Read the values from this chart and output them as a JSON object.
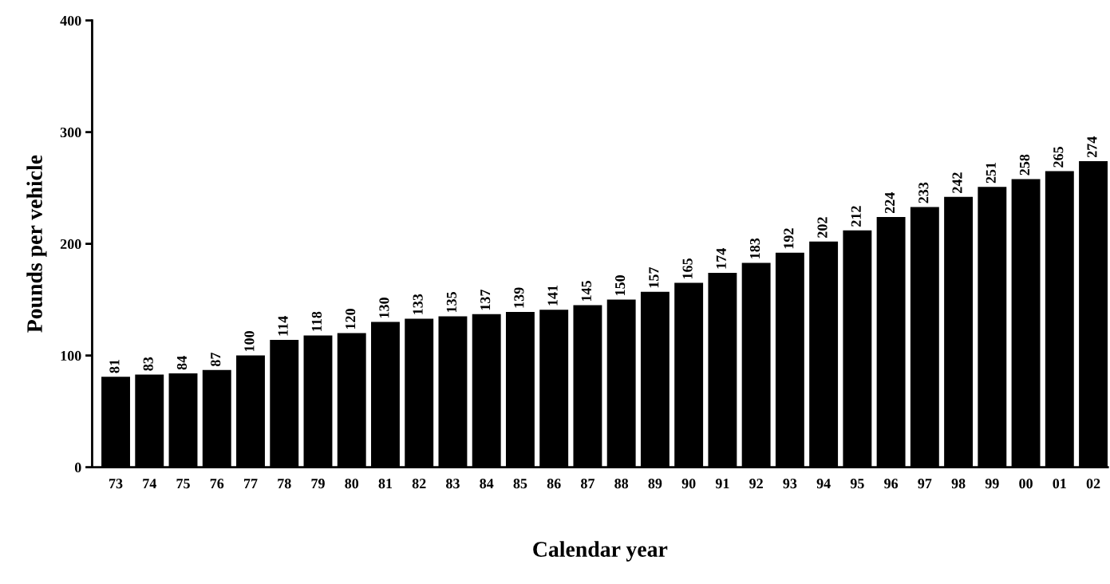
{
  "chart_data": {
    "type": "bar",
    "xlabel": "Calendar year",
    "ylabel": "Pounds per vehicle",
    "categories": [
      "73",
      "74",
      "75",
      "76",
      "77",
      "78",
      "79",
      "80",
      "81",
      "82",
      "83",
      "84",
      "85",
      "86",
      "87",
      "88",
      "89",
      "90",
      "91",
      "92",
      "93",
      "94",
      "95",
      "96",
      "97",
      "98",
      "99",
      "00",
      "01",
      "02"
    ],
    "values": [
      81,
      83,
      84,
      87,
      100,
      114,
      118,
      120,
      130,
      133,
      135,
      137,
      139,
      141,
      145,
      150,
      157,
      165,
      174,
      183,
      192,
      202,
      212,
      224,
      233,
      242,
      251,
      258,
      265,
      274
    ],
    "color": "#000000",
    "ylim": [
      0,
      400
    ],
    "yticks": [
      0,
      100,
      200,
      300,
      400
    ],
    "data_labels": true,
    "grid": false,
    "legend": false
  }
}
